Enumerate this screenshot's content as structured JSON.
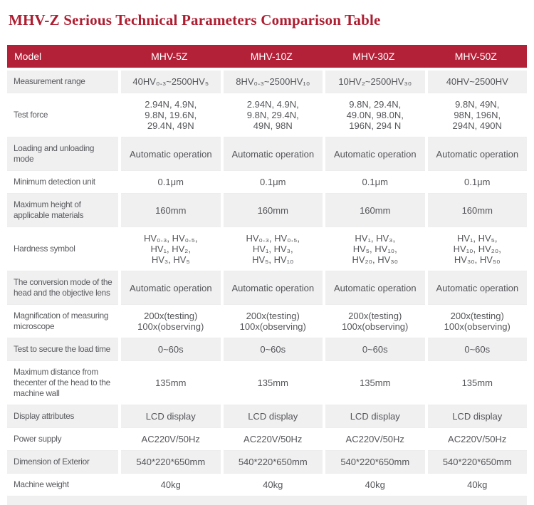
{
  "page": {
    "title": "MHV-Z Serious Technical Parameters Comparison Table"
  },
  "colors": {
    "title_text": "#ae1e31",
    "header_bg": "#b32138",
    "header_text": "#ffffff",
    "alt_row_bg": "#f0f0f1",
    "body_text": "#55565a"
  },
  "table": {
    "header": {
      "model_label": "Model",
      "columns": [
        "MHV-5Z",
        "MHV-10Z",
        "MHV-30Z",
        "MHV-50Z"
      ]
    },
    "rows": [
      {
        "label": "Measurement range",
        "values": [
          "40HV₀.₃~2500HV₅",
          "8HV₀.₃~2500HV₁₀",
          "10HV₂~2500HV₃₀",
          "40HV~2500HV"
        ]
      },
      {
        "label": "Test force",
        "values": [
          "2.94N, 4.9N,\n9.8N, 19.6N,\n29.4N, 49N",
          "2.94N, 4.9N,\n9.8N, 29.4N,\n49N, 98N",
          "9.8N, 29.4N,\n49.0N, 98.0N,\n196N, 294 N",
          "9.8N, 49N,\n98N, 196N,\n294N, 490N"
        ]
      },
      {
        "label": "Loading and unloading mode",
        "values": [
          "Automatic operation",
          "Automatic operation",
          "Automatic operation",
          "Automatic operation"
        ]
      },
      {
        "label": "Minimum detection unit",
        "values": [
          "0.1μm",
          "0.1μm",
          "0.1μm",
          "0.1μm"
        ]
      },
      {
        "label": "Maximum height of applicable materials",
        "values": [
          "160mm",
          "160mm",
          "160mm",
          "160mm"
        ]
      },
      {
        "label": "Hardness symbol",
        "values": [
          "HV₀.₃, HV₀.₅,\nHV₁, HV₂,\nHV₃, HV₅",
          "HV₀.₃, HV₀.₅,\nHV₁, HV₃,\nHV₅, HV₁₀",
          "HV₁, HV₃,\nHV₅, HV₁₀,\nHV₂₀, HV₃₀",
          "HV₁, HV₅,\nHV₁₀, HV₂₀,\nHV₃₀, HV₅₀"
        ]
      },
      {
        "label": "The conversion mode of the head and the objective lens",
        "values": [
          "Automatic operation",
          "Automatic operation",
          "Automatic operation",
          "Automatic operation"
        ]
      },
      {
        "label": "Magnification of measuring microscope",
        "values": [
          "200x(testing)\n100x(observing)",
          "200x(testing)\n100x(observing)",
          "200x(testing)\n100x(observing)",
          "200x(testing)\n100x(observing)"
        ]
      },
      {
        "label": "Test to secure the load time",
        "values": [
          "0~60s",
          "0~60s",
          "0~60s",
          "0~60s"
        ]
      },
      {
        "label": "Maximum distance from thecenter of the head to the machine wall",
        "values": [
          "135mm",
          "135mm",
          "135mm",
          "135mm"
        ]
      },
      {
        "label": "Display attributes",
        "values": [
          "LCD display",
          "LCD display",
          "LCD display",
          "LCD display"
        ]
      },
      {
        "label": "Power supply",
        "values": [
          "AC220V/50Hz",
          "AC220V/50Hz",
          "AC220V/50Hz",
          "AC220V/50Hz"
        ]
      },
      {
        "label": "Dimension of Exterior",
        "values": [
          "540*220*650mm",
          "540*220*650mm",
          "540*220*650mm",
          "540*220*650mm"
        ]
      },
      {
        "label": "Machine weight",
        "values": [
          "40kg",
          "40kg",
          "40kg",
          "40kg"
        ]
      }
    ]
  }
}
